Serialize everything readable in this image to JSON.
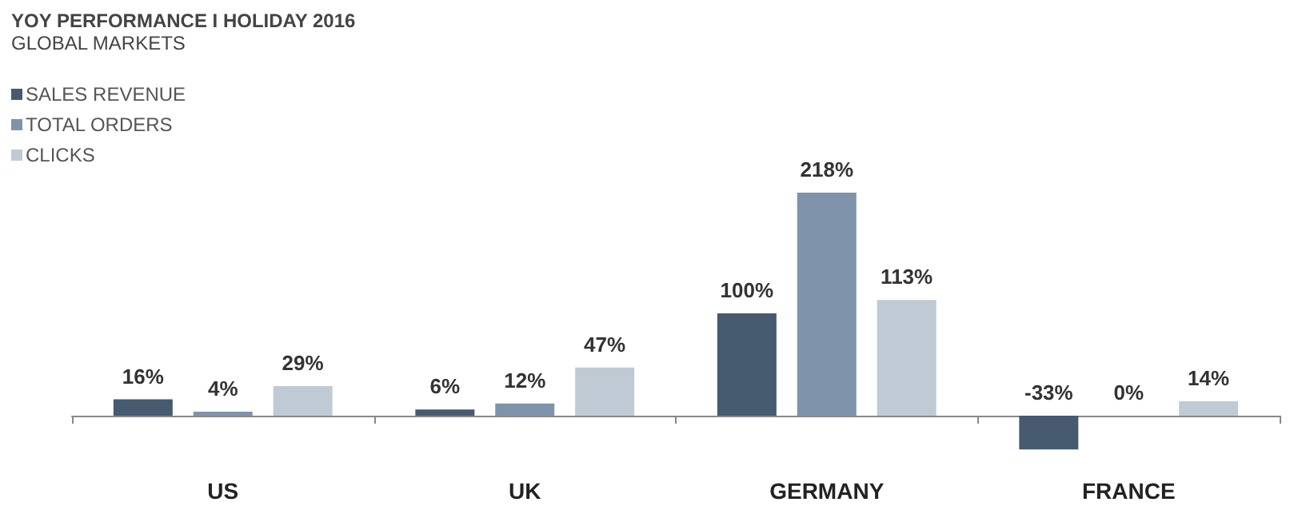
{
  "chart_data": {
    "type": "bar",
    "title": "YOY PERFORMANCE I HOLIDAY 2016",
    "subtitle": "GLOBAL MARKETS",
    "categories": [
      "US",
      "UK",
      "GERMANY",
      "FRANCE"
    ],
    "series": [
      {
        "name": "SALES REVENUE",
        "color": "#465a70",
        "values": [
          16,
          6,
          100,
          -33
        ],
        "value_labels": [
          "16%",
          "6%",
          "100%",
          "-33%"
        ]
      },
      {
        "name": "TOTAL ORDERS",
        "color": "#7f93aa",
        "values": [
          4,
          12,
          218,
          0
        ],
        "value_labels": [
          "4%",
          "12%",
          "218%",
          "0%"
        ]
      },
      {
        "name": "CLICKS",
        "color": "#c0cad5",
        "values": [
          29,
          47,
          113,
          14
        ],
        "value_labels": [
          "29%",
          "47%",
          "113%",
          "14%"
        ]
      }
    ],
    "legend": "top left",
    "grid": false
  }
}
